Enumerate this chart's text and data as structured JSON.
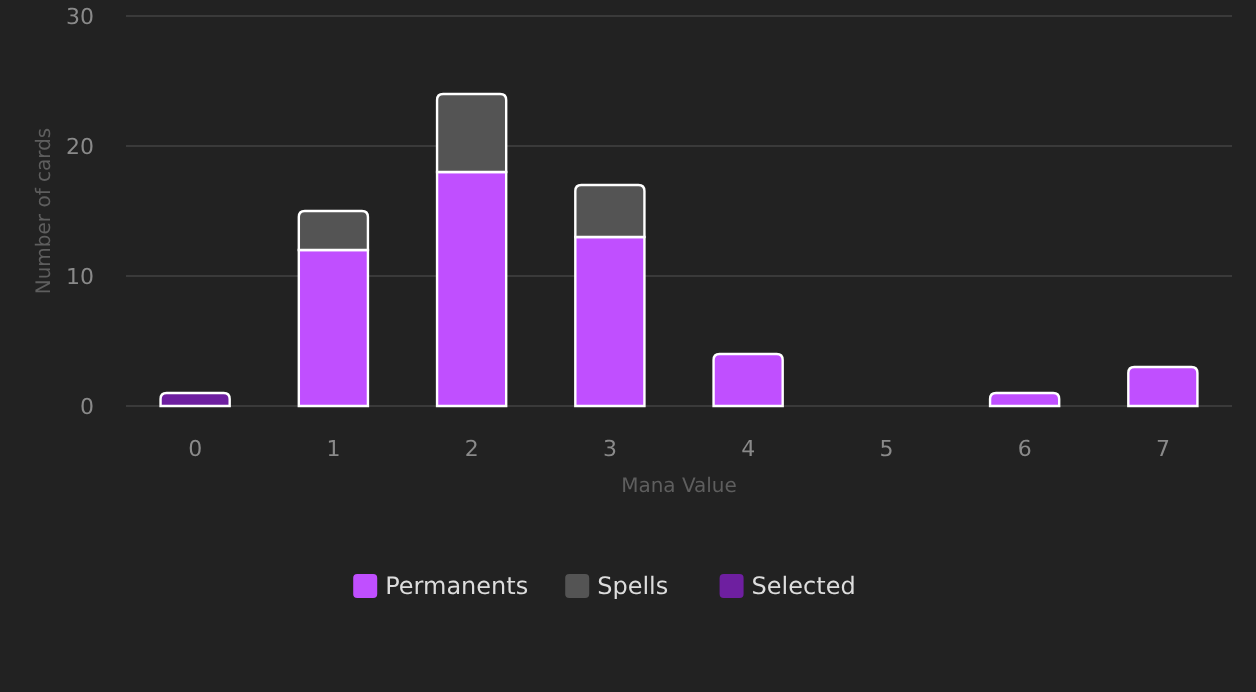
{
  "chart_data": {
    "type": "bar",
    "stacked": true,
    "xlabel": "Mana Value",
    "ylabel": "Number of cards",
    "categories": [
      "0",
      "1",
      "2",
      "3",
      "4",
      "5",
      "6",
      "7"
    ],
    "series": [
      {
        "name": "Permanents",
        "color": "#c04fff",
        "values": [
          0,
          12,
          18,
          13,
          4,
          0,
          1,
          3
        ]
      },
      {
        "name": "Spells",
        "color": "#545454",
        "values": [
          0,
          3,
          6,
          4,
          0,
          0,
          0,
          0
        ]
      },
      {
        "name": "Selected",
        "color": "#6e1fa0",
        "values": [
          1,
          0,
          0,
          0,
          0,
          0,
          0,
          0
        ]
      }
    ],
    "ylim": [
      0,
      30
    ],
    "yticks": [
      0,
      10,
      20,
      30
    ],
    "grid": "y",
    "legend": "bottom"
  }
}
